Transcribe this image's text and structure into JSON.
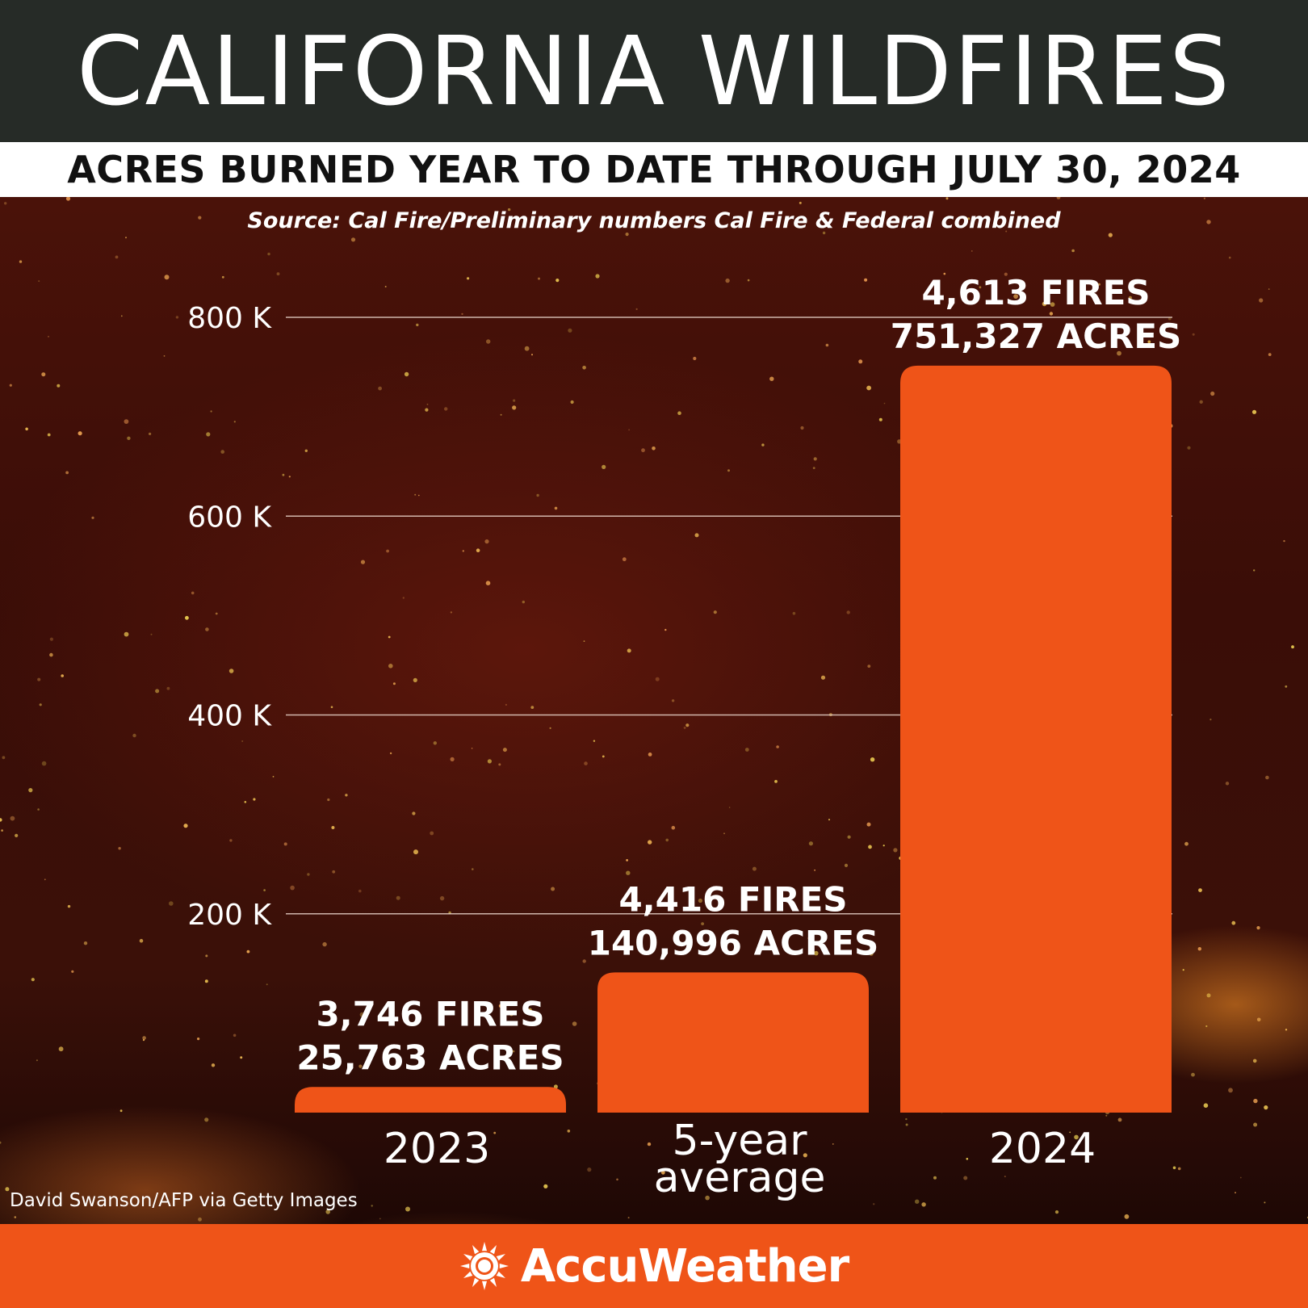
{
  "header": {
    "title": "CALIFORNIA WILDFIRES",
    "subtitle": "ACRES BURNED YEAR TO DATE THROUGH JULY 30, 2024",
    "source": "Source: Cal Fire/Preliminary numbers Cal Fire & Federal combined"
  },
  "photo_credit": "David Swanson/AFP via Getty Images",
  "footer": {
    "brand": "AccuWeather"
  },
  "colors": {
    "bar": "#ef5418",
    "title_bar": "#262b27",
    "footer": "#ef5418"
  },
  "icons": {
    "brand_logo": "sun-icon"
  },
  "chart_data": {
    "type": "bar",
    "title": "CALIFORNIA WILDFIRES",
    "subtitle": "ACRES BURNED YEAR TO DATE THROUGH JULY 30, 2024",
    "categories": [
      {
        "lines": [
          "2023"
        ]
      },
      {
        "lines": [
          "5-year",
          "average"
        ]
      },
      {
        "lines": [
          "2024"
        ]
      }
    ],
    "values": [
      25763,
      140996,
      751327
    ],
    "fires": [
      3746,
      4416,
      4613
    ],
    "data_labels": [
      [
        "3,746 FIRES",
        "25,763 ACRES"
      ],
      [
        "4,416 FIRES",
        "140,996 ACRES"
      ],
      [
        "4,613 FIRES",
        "751,327 ACRES"
      ]
    ],
    "y_ticks": [
      {
        "value": 200000,
        "label": "200 K"
      },
      {
        "value": 400000,
        "label": "400 K"
      },
      {
        "value": 600000,
        "label": "600 K"
      },
      {
        "value": 800000,
        "label": "800 K"
      }
    ],
    "ylim": [
      0,
      800000
    ],
    "grid": true,
    "legend": "none"
  }
}
